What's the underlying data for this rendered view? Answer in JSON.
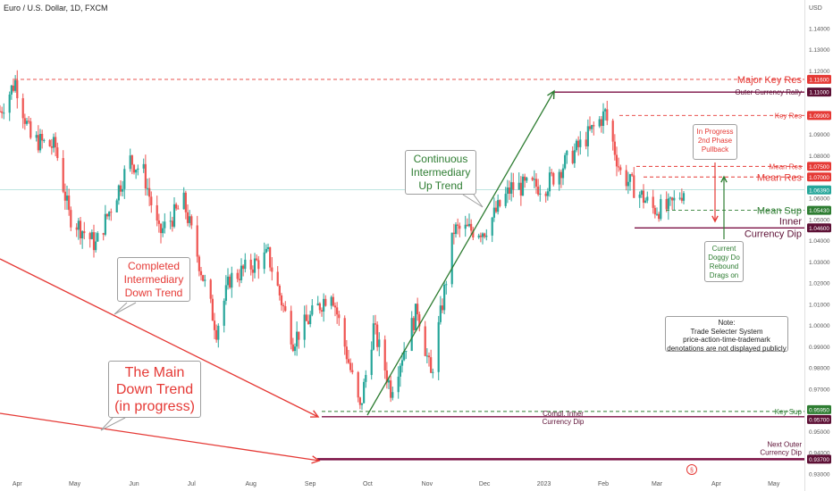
{
  "chart_data": {
    "type": "candlestick",
    "title": "Euro / U.S. Dollar, 1D, FXCM",
    "currency_label": "USD",
    "ylim": [
      0.93,
      1.15
    ],
    "y_ticks": [
      "1.14000",
      "1.13000",
      "1.12000",
      "1.11000",
      "1.10000",
      "1.09000",
      "1.08000",
      "1.07000",
      "1.06000",
      "1.05000",
      "1.04000",
      "1.03000",
      "1.02000",
      "1.01000",
      "1.00000",
      "0.99000",
      "0.98000",
      "0.97000",
      "0.96000",
      "0.95000",
      "0.94000",
      "0.93000"
    ],
    "x_ticks": [
      {
        "label": "Apr",
        "date": "2022-04-01"
      },
      {
        "label": "May",
        "date": "2022-05-01"
      },
      {
        "label": "Jun",
        "date": "2022-06-01"
      },
      {
        "label": "Jul",
        "date": "2022-07-01"
      },
      {
        "label": "Aug",
        "date": "2022-08-01"
      },
      {
        "label": "Sep",
        "date": "2022-09-01"
      },
      {
        "label": "Oct",
        "date": "2022-10-01"
      },
      {
        "label": "Nov",
        "date": "2022-11-01"
      },
      {
        "label": "Dec",
        "date": "2022-12-01"
      },
      {
        "label": "2023",
        "date": "2023-01-01"
      },
      {
        "label": "Feb",
        "date": "2023-02-01"
      },
      {
        "label": "Mar",
        "date": "2023-03-01"
      },
      {
        "label": "Apr",
        "date": "2023-04-01"
      },
      {
        "label": "May",
        "date": "2023-05-01"
      }
    ],
    "x_range": [
      "2022-03-23",
      "2023-05-17"
    ],
    "price_path": [
      [
        "2022-03-23",
        1.101
      ],
      [
        "2022-03-31",
        1.115
      ],
      [
        "2022-04-08",
        1.088
      ],
      [
        "2022-04-21",
        1.084
      ],
      [
        "2022-04-28",
        1.052
      ],
      [
        "2022-05-12",
        1.038
      ],
      [
        "2022-05-20",
        1.056
      ],
      [
        "2022-05-30",
        1.078
      ],
      [
        "2022-06-06",
        1.072
      ],
      [
        "2022-06-14",
        1.043
      ],
      [
        "2022-06-27",
        1.058
      ],
      [
        "2022-07-14",
        0.998
      ],
      [
        "2022-07-21",
        1.022
      ],
      [
        "2022-08-10",
        1.033
      ],
      [
        "2022-08-23",
        0.993
      ],
      [
        "2022-09-12",
        1.017
      ],
      [
        "2022-09-27",
        0.96
      ],
      [
        "2022-10-04",
        0.999
      ],
      [
        "2022-10-13",
        0.97
      ],
      [
        "2022-10-27",
        1.008
      ],
      [
        "2022-11-03",
        0.976
      ],
      [
        "2022-11-15",
        1.045
      ],
      [
        "2022-12-01",
        1.045
      ],
      [
        "2022-12-15",
        1.065
      ],
      [
        "2023-01-02",
        1.066
      ],
      [
        "2023-01-20",
        1.085
      ],
      [
        "2023-02-02",
        1.1
      ],
      [
        "2023-02-10",
        1.072
      ],
      [
        "2023-02-27",
        1.055
      ],
      [
        "2023-03-07",
        1.055
      ],
      [
        "2023-03-15",
        1.0639
      ]
    ],
    "last_price": "1.06390",
    "levels": [
      {
        "label": "Major Key Res",
        "value": 1.116,
        "tag": "1.11600",
        "color": "#e53935",
        "style": "dashed"
      },
      {
        "label": "Outer Currency Rally",
        "value": 1.11,
        "tag": "1.11000",
        "color": "#7b1044",
        "style": "solid"
      },
      {
        "label": "Key Res",
        "value": 1.099,
        "tag": "1.09900",
        "color": "#e53935",
        "style": "dashed"
      },
      {
        "label": "Mean Res",
        "value": 1.075,
        "tag": "1.07500",
        "color": "#e53935",
        "style": "dashed"
      },
      {
        "label": "Mean Res",
        "value": 1.07,
        "tag": "1.07000",
        "color": "#e53935",
        "style": "dashed"
      },
      {
        "label": "Mean Sup",
        "value": 1.0543,
        "tag": "1.05430",
        "color": "#2e7d32",
        "style": "dashed"
      },
      {
        "label": "Inner Currency Dip",
        "value": 1.046,
        "tag": "1.04600",
        "color": "#7b1044",
        "style": "solid"
      },
      {
        "label": "Key Sup",
        "value": 0.9595,
        "tag": "0.95950",
        "color": "#2e7d32",
        "style": "dashed"
      },
      {
        "label": "Compl. Inner Currency Dip",
        "value": 0.957,
        "tag": "0.95700",
        "color": "#7b1044",
        "style": "solid"
      },
      {
        "label": "Next Outer Currency Dip",
        "value": 0.937,
        "tag": "0.93700",
        "color": "#7b1044",
        "style": "solid"
      }
    ]
  },
  "labels": {
    "major_key_res": "Major Key Res",
    "outer_rally": "Outer Currency Rally",
    "key_res": "Key Res",
    "mean_res_1": "Mean Res",
    "mean_res_2": "Mean Res",
    "mean_sup": "Mean Sup",
    "inner": "Inner",
    "currency_dip": "Currency Dip",
    "key_sup": "Key Sup",
    "compl_inner_1": "Compl. Inner",
    "compl_inner_2": "Currency Dip",
    "next_outer_1": "Next Outer",
    "next_outer_2": "Currency Dip"
  },
  "callouts": {
    "completed_trend": [
      "Completed",
      "Intermediary",
      "Down Trend"
    ],
    "main_trend": [
      "The Main",
      "Down Trend",
      "(in progress)"
    ],
    "continuous_trend": [
      "Continuous",
      "Intermediary",
      "Up Trend"
    ],
    "in_progress": [
      "In Progress",
      "2nd Phase",
      "Pullback"
    ],
    "doggy_do": [
      "Current",
      "Doggy Do",
      "Rebound",
      "Drags on"
    ],
    "note": [
      "Note:",
      "Trade Selecter System",
      "price-action-time-trademark",
      "denotations are not displayed publicly"
    ]
  },
  "colors": {
    "up": "#26a69a",
    "down": "#ef5350",
    "red_line": "#e53935",
    "green_line": "#2e7d32",
    "maroon_line": "#7b1044",
    "last_price_line": "#26a69a"
  }
}
